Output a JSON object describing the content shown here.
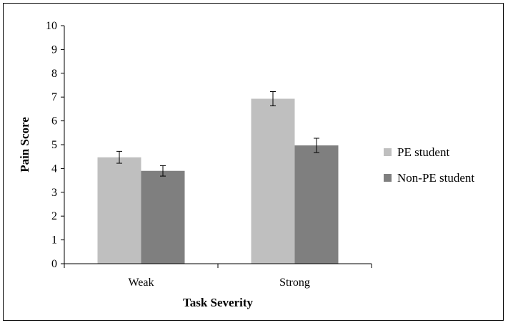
{
  "chart_data": {
    "type": "bar",
    "title": "",
    "xlabel": "Task Severity",
    "ylabel": "Pain Score",
    "categories": [
      "Weak",
      "Strong"
    ],
    "series": [
      {
        "name": "PE student",
        "values": [
          4.47,
          6.93
        ],
        "error": [
          0.25,
          0.3
        ],
        "color": "#bfbfbf"
      },
      {
        "name": "Non-PE student",
        "values": [
          3.9,
          4.97
        ],
        "error": [
          0.22,
          0.3
        ],
        "color": "#7f7f7f"
      }
    ],
    "ylim": [
      0,
      10
    ],
    "yticks": [
      "0",
      "1",
      "2",
      "3",
      "4",
      "5",
      "6",
      "7",
      "8",
      "9",
      "10"
    ],
    "grid": false,
    "legend_position": "right"
  }
}
